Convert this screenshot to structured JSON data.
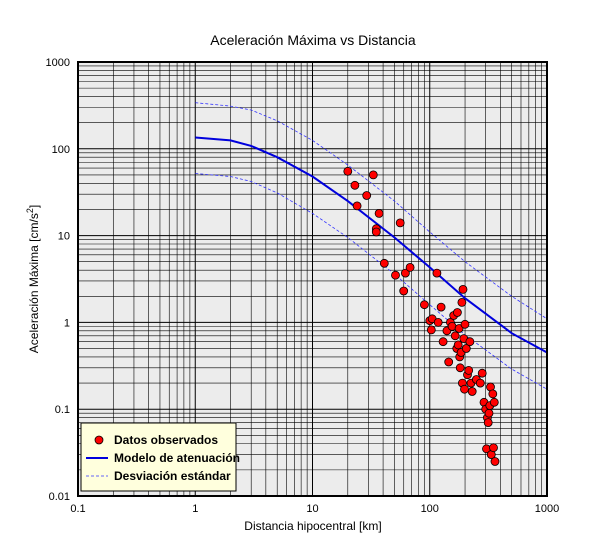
{
  "chart_data": {
    "type": "scatter",
    "title": "Aceleración Máxima vs Distancia",
    "xlabel": "Distancia hipocentral [km]",
    "ylabel_main": "Aceleración Máxima [cm/s",
    "ylabel_sup": "2",
    "ylabel_end": "]",
    "x_scale": "log",
    "y_scale": "log",
    "xlim": [
      0.1,
      1000
    ],
    "ylim": [
      0.01,
      1000
    ],
    "grid": true,
    "legend_position": "bottom-left",
    "x_ticks": [
      {
        "value": 0.1,
        "label": "0.1"
      },
      {
        "value": 1,
        "label": "1"
      },
      {
        "value": 10,
        "label": "10"
      },
      {
        "value": 100,
        "label": "100"
      },
      {
        "value": 1000,
        "label": "1000"
      }
    ],
    "y_ticks": [
      {
        "value": 0.01,
        "label": "0.01"
      },
      {
        "value": 0.1,
        "label": "0.1"
      },
      {
        "value": 1,
        "label": "1"
      },
      {
        "value": 10,
        "label": "10"
      },
      {
        "value": 100,
        "label": "100"
      },
      {
        "value": 1000,
        "label": "1000"
      }
    ],
    "series": [
      {
        "name": "Datos observados",
        "kind": "points",
        "color": "#ff0000",
        "x": [
          20,
          23,
          24,
          29,
          33,
          35,
          35,
          37,
          41,
          51,
          56,
          60,
          62,
          68,
          90,
          100,
          103,
          105,
          115,
          118,
          125,
          130,
          140,
          145,
          150,
          155,
          160,
          165,
          170,
          172,
          175,
          178,
          180,
          182,
          185,
          188,
          190,
          192,
          195,
          198,
          200,
          205,
          210,
          215,
          220,
          225,
          230,
          250,
          270,
          280,
          290,
          300,
          305,
          310,
          315,
          320,
          325,
          330,
          335,
          345,
          350,
          355,
          360
        ],
        "y": [
          55,
          38,
          22,
          29,
          50,
          12,
          11,
          18,
          4.8,
          3.5,
          14,
          2.3,
          3.7,
          4.3,
          1.6,
          1.05,
          0.82,
          1.1,
          3.7,
          1.0,
          1.5,
          0.6,
          0.8,
          0.35,
          1.0,
          0.9,
          1.2,
          0.7,
          0.5,
          1.3,
          0.55,
          0.85,
          0.4,
          0.3,
          0.45,
          1.7,
          0.2,
          2.4,
          0.65,
          0.17,
          0.95,
          0.5,
          0.25,
          0.28,
          0.6,
          0.2,
          0.16,
          0.22,
          0.2,
          0.26,
          0.12,
          0.1,
          0.035,
          0.08,
          0.07,
          0.09,
          0.11,
          0.18,
          0.03,
          0.15,
          0.036,
          0.12,
          0.025
        ]
      },
      {
        "name": "Modelo de atenuación",
        "kind": "line",
        "color": "#0000dd",
        "x": [
          1,
          2,
          3,
          5,
          10,
          20,
          50,
          100,
          200,
          500,
          1000
        ],
        "y": [
          135,
          125,
          108,
          80,
          48,
          25,
          9.5,
          4.3,
          1.9,
          0.75,
          0.45
        ]
      },
      {
        "name": "Desviación estándar",
        "kind": "dashed",
        "color": "#3333ff",
        "x": [
          1,
          2,
          3,
          5,
          10,
          20,
          50,
          100,
          200,
          500,
          1000
        ],
        "y": [
          340,
          310,
          280,
          210,
          125,
          65,
          25,
          11,
          5,
          2,
          1.1
        ]
      },
      {
        "name": "Desviación estándar",
        "kind": "dashed",
        "color": "#3333ff",
        "x": [
          1,
          2,
          3,
          5,
          10,
          20,
          50,
          100,
          200,
          500,
          1000
        ],
        "y": [
          52,
          48,
          42,
          31,
          18,
          9.5,
          3.6,
          1.6,
          0.72,
          0.29,
          0.17
        ]
      }
    ]
  },
  "legend": {
    "items": [
      {
        "label": "Datos observados",
        "symbol": "marker",
        "color": "#ff0000"
      },
      {
        "label": "Modelo de atenuación",
        "symbol": "solid",
        "color": "#0000dd"
      },
      {
        "label": "Desviación estándar",
        "symbol": "dashed",
        "color": "#3333ff"
      }
    ],
    "background": "#ffffdd"
  },
  "colors": {
    "plot_background": "#ececec",
    "grid_major": "#000000",
    "grid_minor": "#000000"
  }
}
